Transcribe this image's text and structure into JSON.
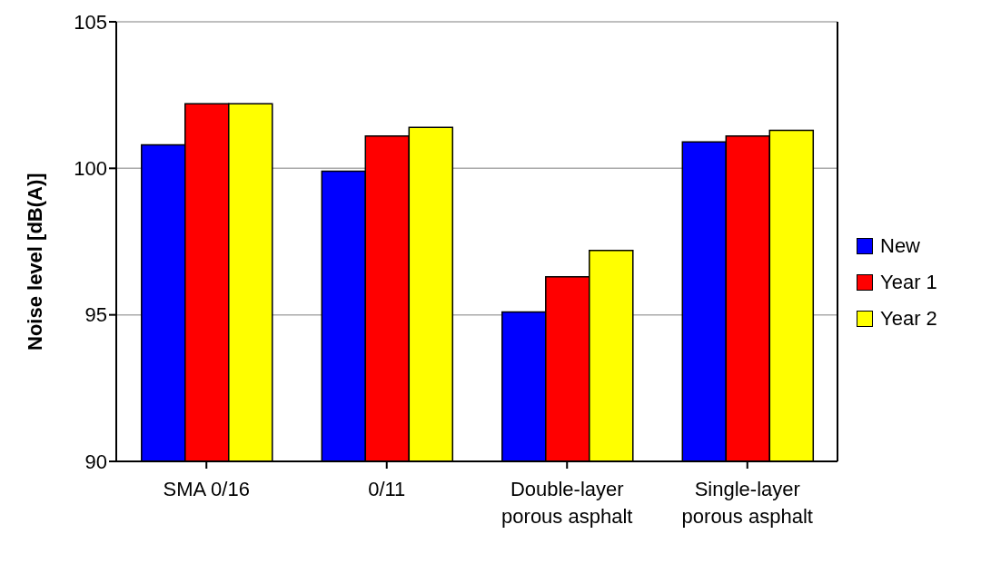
{
  "chart_data": {
    "type": "bar",
    "ylabel": "Noise level [dB(A)]",
    "categories": [
      "SMA 0/16",
      "0/11",
      "Double-layer porous asphalt",
      "Single-layer porous asphalt"
    ],
    "series": [
      {
        "name": "New",
        "color": "#0000ff",
        "values": [
          100.8,
          99.9,
          95.1,
          100.9
        ]
      },
      {
        "name": "Year 1",
        "color": "#ff0000",
        "values": [
          102.2,
          101.1,
          96.3,
          101.1
        ]
      },
      {
        "name": "Year 2",
        "color": "#ffff00",
        "values": [
          102.2,
          101.4,
          97.2,
          101.3
        ]
      }
    ],
    "ylim": [
      90,
      105
    ],
    "yticks": [
      90,
      95,
      100,
      105
    ],
    "grid": "y",
    "legend": "right"
  }
}
